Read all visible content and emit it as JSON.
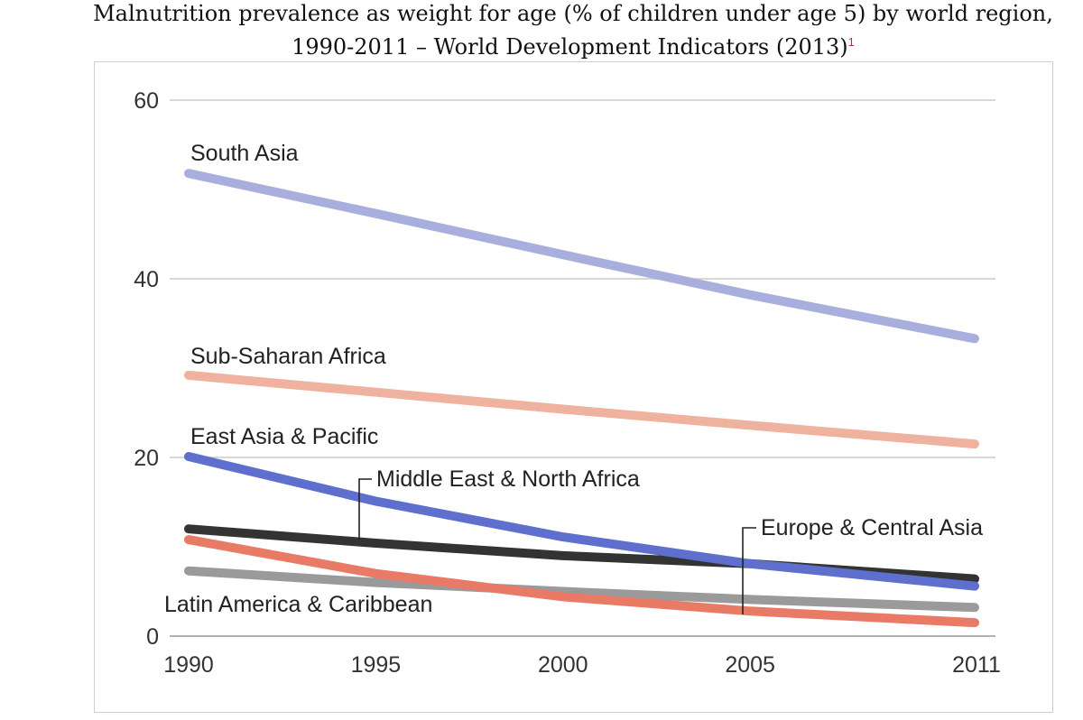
{
  "title": {
    "line1": "Malnutrition prevalence as weight for age (% of children under age 5) by world region,",
    "line2": "1990-2011 – World Development Indicators (2013)",
    "footnote_mark": "1"
  },
  "chart_data": {
    "type": "line",
    "title": "Malnutrition prevalence as weight for age (% of children under age 5) by world region, 1990-2011 – World Development Indicators (2013)",
    "xlabel": "",
    "ylabel": "",
    "x": [
      1990,
      1995,
      2000,
      2005,
      2011
    ],
    "x_ticks": [
      "1990",
      "1995",
      "2000",
      "2005",
      "2011"
    ],
    "y_ticks": [
      "0",
      "20",
      "40",
      "60"
    ],
    "xlim": [
      1990,
      2011
    ],
    "ylim": [
      0,
      60
    ],
    "grid": "horizontal",
    "legend": "inline labels",
    "series": [
      {
        "name": "South Asia",
        "color": "#a9afdc",
        "values": [
          51.8,
          47.3,
          42.7,
          38.2,
          33.3
        ]
      },
      {
        "name": "Sub-Saharan Africa",
        "color": "#eeb29e",
        "values": [
          29.2,
          27.3,
          25.4,
          23.6,
          21.5
        ]
      },
      {
        "name": "East Asia & Pacific",
        "color": "#5f6fcd",
        "values": [
          20.1,
          15.1,
          11.1,
          8.1,
          5.6
        ]
      },
      {
        "name": "Middle East & North Africa",
        "color": "#333333",
        "values": [
          12.0,
          10.4,
          9.0,
          8.1,
          6.4
        ]
      },
      {
        "name": "Europe & Central Asia",
        "color": "#e87a66",
        "values": [
          10.8,
          7.0,
          4.4,
          2.8,
          1.5
        ]
      },
      {
        "name": "Latin America & Caribbean",
        "color": "#9a9a9a",
        "values": [
          7.3,
          6.0,
          5.0,
          4.1,
          3.2
        ]
      }
    ]
  }
}
